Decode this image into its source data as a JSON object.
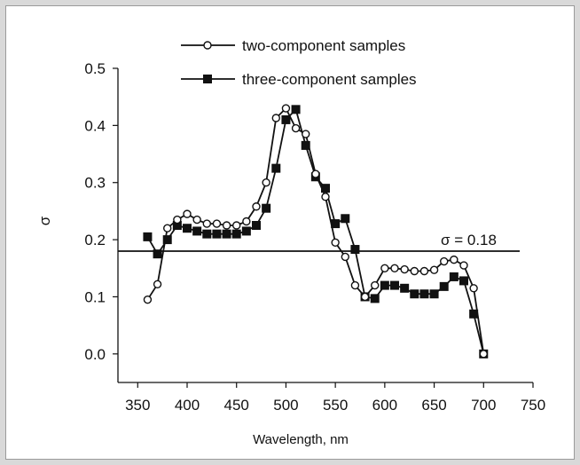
{
  "chart_data": {
    "type": "line",
    "xlabel": "Wavelength, nm",
    "ylabel": "σ",
    "xlim": [
      330,
      750
    ],
    "ylim": [
      -0.05,
      0.5
    ],
    "xticks": [
      350,
      400,
      450,
      500,
      550,
      600,
      650,
      700,
      750
    ],
    "yticks": [
      0.0,
      0.1,
      0.2,
      0.3,
      0.4,
      0.5
    ],
    "xtick_labels": [
      "350",
      "400",
      "450",
      "500",
      "550",
      "600",
      "650",
      "700",
      "750"
    ],
    "ytick_labels": [
      "0.0",
      "0.1",
      "0.2",
      "0.3",
      "0.4",
      "0.5"
    ],
    "grid": false,
    "legend_position": "top-center",
    "series": [
      {
        "name": "two-component samples",
        "marker": "open-circle",
        "color": "#111111",
        "x": [
          360,
          370,
          380,
          390,
          400,
          410,
          420,
          430,
          440,
          450,
          460,
          470,
          480,
          490,
          500,
          510,
          520,
          530,
          540,
          550,
          560,
          570,
          580,
          590,
          600,
          610,
          620,
          630,
          640,
          650,
          660,
          670,
          680,
          690,
          700
        ],
        "y": [
          0.095,
          0.122,
          0.22,
          0.235,
          0.245,
          0.235,
          0.228,
          0.228,
          0.225,
          0.225,
          0.232,
          0.258,
          0.3,
          0.413,
          0.43,
          0.395,
          0.385,
          0.315,
          0.275,
          0.195,
          0.17,
          0.12,
          0.1,
          0.12,
          0.15,
          0.15,
          0.148,
          0.145,
          0.145,
          0.147,
          0.162,
          0.165,
          0.155,
          0.115,
          0.0
        ]
      },
      {
        "name": "three-component samples",
        "marker": "filled-square",
        "color": "#111111",
        "x": [
          360,
          370,
          380,
          390,
          400,
          410,
          420,
          430,
          440,
          450,
          460,
          470,
          480,
          490,
          500,
          510,
          520,
          530,
          540,
          550,
          560,
          570,
          580,
          590,
          600,
          610,
          620,
          630,
          640,
          650,
          660,
          670,
          680,
          690,
          700
        ],
        "y": [
          0.205,
          0.175,
          0.2,
          0.225,
          0.22,
          0.215,
          0.21,
          0.21,
          0.21,
          0.21,
          0.215,
          0.225,
          0.255,
          0.325,
          0.41,
          0.428,
          0.365,
          0.31,
          0.29,
          0.228,
          0.237,
          0.183,
          0.1,
          0.097,
          0.12,
          0.12,
          0.115,
          0.105,
          0.105,
          0.105,
          0.118,
          0.135,
          0.128,
          0.07,
          0.0
        ]
      }
    ],
    "reference_line": {
      "y": 0.18,
      "label": "σ  = 0.18"
    }
  }
}
